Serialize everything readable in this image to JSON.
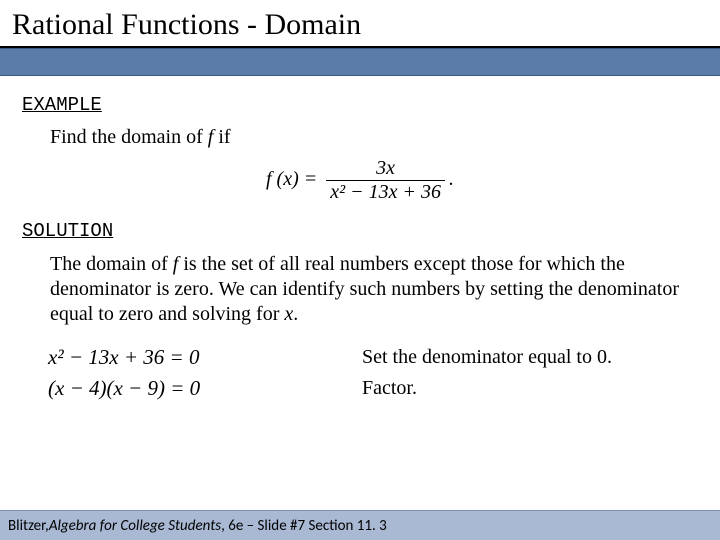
{
  "title": "Rational Functions - Domain",
  "example_label": "EXAMPLE",
  "prompt_prefix": "Find the domain of  ",
  "prompt_var": "f",
  "prompt_suffix": "  if",
  "formula": {
    "lhs": "f (x) =",
    "numerator": "3x",
    "denominator": "x² − 13x + 36",
    "tail": "."
  },
  "solution_label": "SOLUTION",
  "explanation_parts": {
    "a": "The domain of ",
    "b": "f",
    "c": " is the set of all real numbers except those for which the denominator is zero.  We can identify such numbers by setting the denominator equal to zero and solving for ",
    "d": "x",
    "e": "."
  },
  "steps": [
    {
      "math": "x² − 13x + 36 = 0",
      "text": "Set the denominator equal to 0."
    },
    {
      "math": "(x − 4)(x − 9) = 0",
      "text": "Factor."
    }
  ],
  "footer": {
    "author": "Blitzer, ",
    "book": "Algebra for College Students",
    "rest": ", 6e – Slide #7  Section 11. 3"
  },
  "colors": {
    "band": "#5b7ca8",
    "footer_bg": "#a9b9d4"
  }
}
